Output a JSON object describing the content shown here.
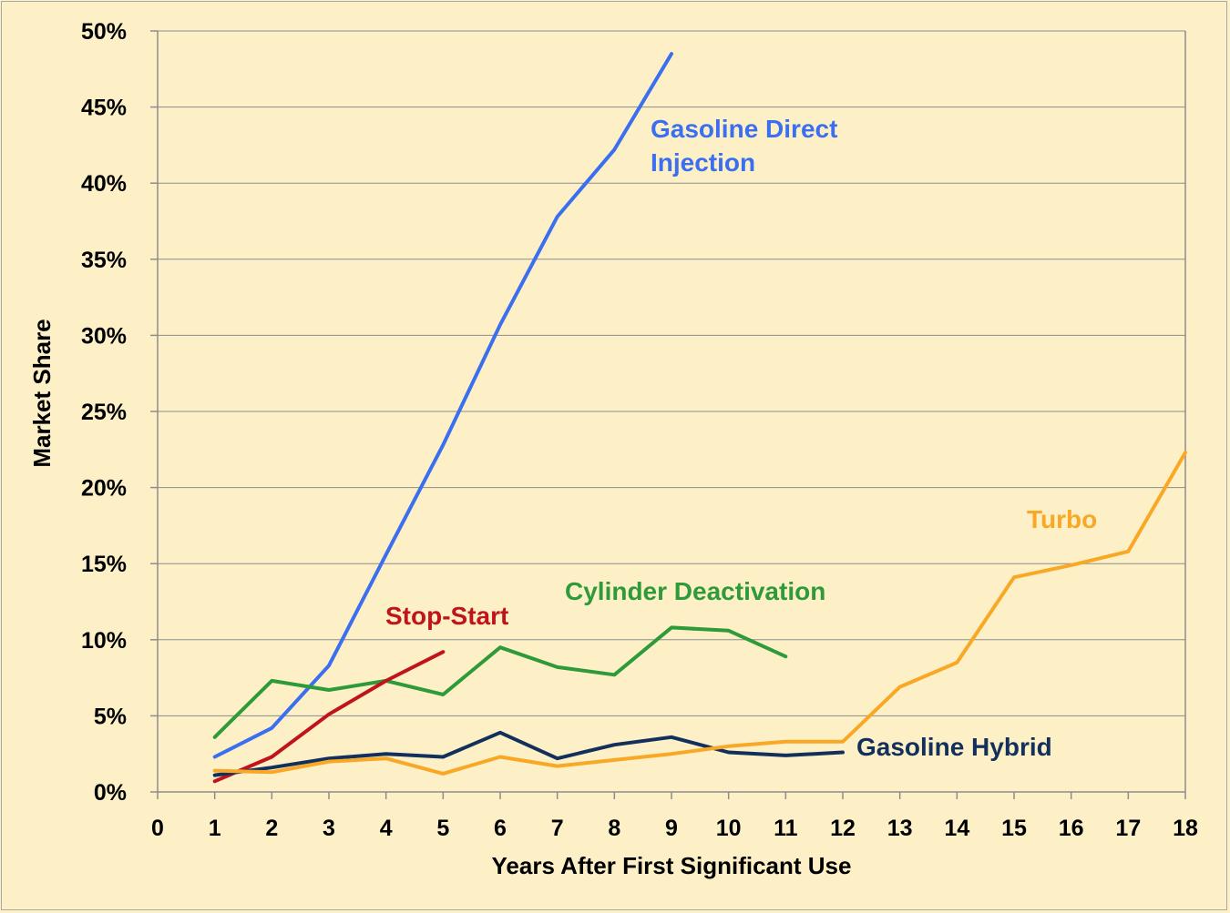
{
  "chart_data": {
    "type": "line",
    "title": "",
    "xlabel": "Years After First Significant Use",
    "ylabel": "Market Share",
    "xlim": [
      0,
      18
    ],
    "ylim": [
      0,
      50
    ],
    "x_ticks": [
      0,
      1,
      2,
      3,
      4,
      5,
      6,
      7,
      8,
      9,
      10,
      11,
      12,
      13,
      14,
      15,
      16,
      17,
      18
    ],
    "y_ticks": [
      0,
      5,
      10,
      15,
      20,
      25,
      30,
      35,
      40,
      45,
      50
    ],
    "y_tick_suffix": "%",
    "grid": "horizontal",
    "legend": "inline labels",
    "series": [
      {
        "name": "Gasoline Direct Injection",
        "label_lines": [
          "Gasoline Direct",
          "Injection"
        ],
        "color": "#3b6ff0",
        "x": [
          1,
          2,
          3,
          4,
          5,
          6,
          7,
          8,
          9
        ],
        "values": [
          2.3,
          4.2,
          8.3,
          15.6,
          22.8,
          30.7,
          37.8,
          42.2,
          48.5
        ]
      },
      {
        "name": "Cylinder Deactivation",
        "label_lines": [
          "Cylinder Deactivation"
        ],
        "color": "#2e9a3a",
        "x": [
          1,
          2,
          3,
          4,
          5,
          6,
          7,
          8,
          9,
          10,
          11
        ],
        "values": [
          3.6,
          7.3,
          6.7,
          7.3,
          6.4,
          9.5,
          8.2,
          7.7,
          10.8,
          10.6,
          8.9
        ]
      },
      {
        "name": "Stop-Start",
        "label_lines": [
          "Stop-Start"
        ],
        "color": "#c0141c",
        "x": [
          1,
          2,
          3,
          4,
          5
        ],
        "values": [
          0.7,
          2.3,
          5.1,
          7.3,
          9.2
        ]
      },
      {
        "name": "Gasoline Hybrid",
        "label_lines": [
          "Gasoline Hybrid"
        ],
        "color": "#13305c",
        "x": [
          1,
          2,
          3,
          4,
          5,
          6,
          7,
          8,
          9,
          10,
          11,
          12
        ],
        "values": [
          1.1,
          1.6,
          2.2,
          2.5,
          2.3,
          3.9,
          2.2,
          3.1,
          3.6,
          2.6,
          2.4,
          2.6
        ]
      },
      {
        "name": "Turbo",
        "label_lines": [
          "Turbo"
        ],
        "color": "#f9a825",
        "x": [
          1,
          2,
          3,
          4,
          5,
          6,
          7,
          8,
          9,
          10,
          11,
          12,
          13,
          14,
          15,
          16,
          17,
          18
        ],
        "values": [
          1.4,
          1.3,
          2.0,
          2.2,
          1.2,
          2.3,
          1.7,
          2.1,
          2.5,
          3.0,
          3.3,
          3.3,
          6.9,
          8.5,
          14.1,
          14.9,
          15.8,
          22.3
        ]
      }
    ]
  }
}
